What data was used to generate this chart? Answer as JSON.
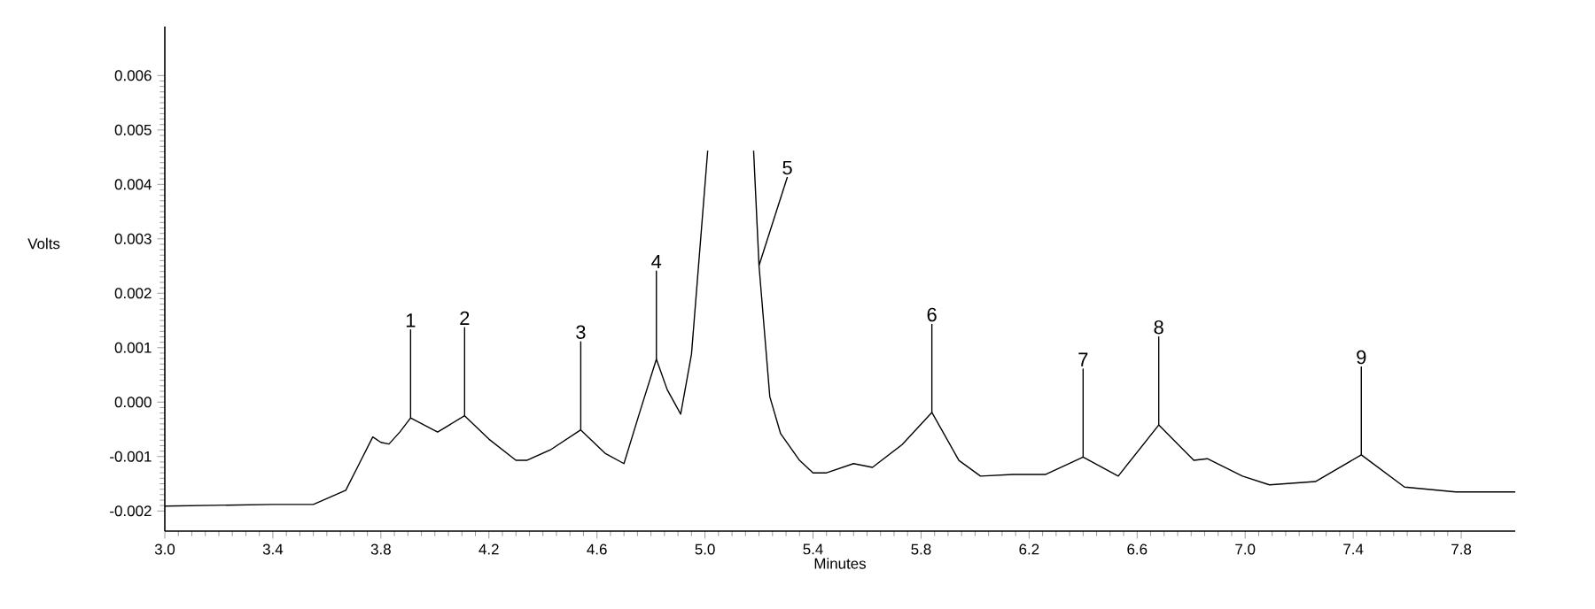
{
  "chart_data": {
    "type": "line",
    "xlabel": "Minutes",
    "ylabel": "Volts",
    "xlim": [
      3.0,
      8.0
    ],
    "ylim": [
      -0.00237,
      0.0069
    ],
    "xticks": [
      {
        "value": 3.0,
        "label": "3.0"
      },
      {
        "value": 3.4,
        "label": "3.4"
      },
      {
        "value": 3.8,
        "label": "3.8"
      },
      {
        "value": 4.2,
        "label": "4.2"
      },
      {
        "value": 4.6,
        "label": "4.6"
      },
      {
        "value": 5.0,
        "label": "5.0"
      },
      {
        "value": 5.4,
        "label": "5.4"
      },
      {
        "value": 5.8,
        "label": "5.8"
      },
      {
        "value": 6.2,
        "label": "6.2"
      },
      {
        "value": 6.6,
        "label": "6.6"
      },
      {
        "value": 7.0,
        "label": "7.0"
      },
      {
        "value": 7.4,
        "label": "7.4"
      },
      {
        "value": 7.8,
        "label": "7.8"
      }
    ],
    "yticks": [
      {
        "value": 0.006,
        "label": "0.006"
      },
      {
        "value": 0.005,
        "label": "0.005"
      },
      {
        "value": 0.004,
        "label": "0.004"
      },
      {
        "value": 0.003,
        "label": "0.003"
      },
      {
        "value": 0.002,
        "label": "0.002"
      },
      {
        "value": 0.001,
        "label": "0.001"
      },
      {
        "value": 0.0,
        "label": "0.000"
      },
      {
        "value": -0.001,
        "label": "-0.001"
      },
      {
        "value": -0.002,
        "label": "-0.002"
      }
    ],
    "grid": false,
    "marker": "none",
    "line_style": "solid",
    "series": [
      {
        "color": "#000000",
        "x": [
          3.0,
          3.4,
          3.55,
          3.67,
          3.72,
          3.77,
          3.8,
          3.83,
          3.87,
          3.91,
          4.01,
          4.11,
          4.2,
          4.3,
          4.34,
          4.43,
          4.54,
          4.63,
          4.7,
          4.76,
          4.82,
          4.86,
          4.91,
          4.95,
          5.01,
          5.1,
          5.18,
          5.2,
          5.24,
          5.28,
          5.35,
          5.4,
          5.45,
          5.55,
          5.62,
          5.73,
          5.84,
          5.94,
          6.02,
          6.14,
          6.26,
          6.4,
          6.53,
          6.68,
          6.81,
          6.86,
          6.99,
          7.09,
          7.26,
          7.43,
          7.59,
          7.78,
          8.0
        ],
        "values": [
          -0.00191,
          -0.00188,
          -0.00188,
          -0.00162,
          -0.00113,
          -0.00064,
          -0.00074,
          -0.00077,
          -0.00055,
          -0.00029,
          -0.00055,
          -0.00025,
          -0.00068,
          -0.00107,
          -0.00107,
          -0.00087,
          -0.00051,
          -0.00094,
          -0.00113,
          -0.00016,
          0.00079,
          0.00023,
          -0.00022,
          0.00088,
          0.00462,
          null,
          0.00462,
          0.00251,
          0.0001,
          -0.00058,
          -0.00107,
          -0.0013,
          -0.0013,
          -0.00113,
          -0.0012,
          -0.00078,
          -0.00019,
          -0.00107,
          -0.00136,
          -0.00133,
          -0.00133,
          -0.00101,
          -0.00136,
          -0.00042,
          -0.00107,
          -0.00104,
          -0.00136,
          -0.00152,
          -0.00146,
          -0.00097,
          -0.00156,
          -0.00165,
          -0.00165
        ]
      }
    ],
    "annotations": [
      {
        "text": "1",
        "x": 3.91,
        "y": -0.00029
      },
      {
        "text": "2",
        "x": 4.11,
        "y": -0.00025
      },
      {
        "text": "3",
        "x": 4.54,
        "y": -0.00051
      },
      {
        "text": "4",
        "x": 4.82,
        "y": 0.00079
      },
      {
        "text": "5",
        "x": 5.2,
        "y": 0.00251
      },
      {
        "text": "6",
        "x": 5.84,
        "y": -0.00019
      },
      {
        "text": "7",
        "x": 6.4,
        "y": -0.00101
      },
      {
        "text": "8",
        "x": 6.68,
        "y": -0.00042
      },
      {
        "text": "9",
        "x": 7.43,
        "y": -0.00097
      }
    ]
  }
}
